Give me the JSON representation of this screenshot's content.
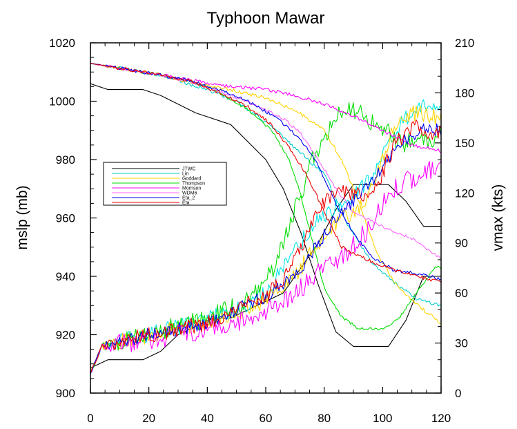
{
  "chart_data": {
    "type": "line",
    "title": "Typhoon Mawar",
    "xlabel": "",
    "ylabel_left": "mslp (mb)",
    "ylabel_right": "vmax (kts)",
    "xlim": [
      0,
      120
    ],
    "ylim_left": [
      900,
      1020
    ],
    "ylim_right": [
      0,
      210
    ],
    "x_ticks": [
      0,
      20,
      40,
      60,
      80,
      100,
      120
    ],
    "y_ticks_left": [
      900,
      920,
      940,
      960,
      980,
      1000,
      1020
    ],
    "y_ticks_right": [
      0,
      30,
      60,
      90,
      120,
      150,
      180,
      210
    ],
    "grid": false,
    "legend_position": "left",
    "legend": [
      "JTWC",
      "Lin",
      "Goddard",
      "Thompson",
      "Morrison",
      "WDM6",
      "Eta_2",
      "Eta"
    ],
    "series": [
      {
        "name": "JTWC",
        "color": "#000000",
        "quantity": "mslp",
        "axis": "left",
        "noise": 0,
        "points": [
          [
            0,
            1006
          ],
          [
            6,
            1004
          ],
          [
            18,
            1004
          ],
          [
            24,
            1002
          ],
          [
            36,
            996
          ],
          [
            48,
            992
          ],
          [
            60,
            980
          ],
          [
            66,
            970
          ],
          [
            72,
            955
          ],
          [
            78,
            937
          ],
          [
            84,
            921
          ],
          [
            90,
            916
          ],
          [
            102,
            916
          ],
          [
            108,
            925
          ],
          [
            114,
            940
          ],
          [
            120,
            940
          ]
        ]
      },
      {
        "name": "JTWC",
        "color": "#000000",
        "quantity": "vmax",
        "axis": "right",
        "noise": 0,
        "points": [
          [
            0,
            15
          ],
          [
            6,
            20
          ],
          [
            18,
            20
          ],
          [
            24,
            25
          ],
          [
            30,
            35
          ],
          [
            42,
            45
          ],
          [
            48,
            45
          ],
          [
            54,
            50
          ],
          [
            60,
            55
          ],
          [
            66,
            60
          ],
          [
            72,
            75
          ],
          [
            78,
            90
          ],
          [
            84,
            110
          ],
          [
            90,
            125
          ],
          [
            102,
            125
          ],
          [
            108,
            115
          ],
          [
            114,
            100
          ],
          [
            120,
            100
          ]
        ]
      },
      {
        "name": "Lin",
        "color": "#00cccc",
        "quantity": "mslp",
        "axis": "left",
        "noise": 0.6,
        "points": [
          [
            0,
            1013
          ],
          [
            12,
            1011
          ],
          [
            24,
            1009
          ],
          [
            30,
            1007
          ],
          [
            40,
            1004
          ],
          [
            50,
            1000
          ],
          [
            60,
            993
          ],
          [
            70,
            984
          ],
          [
            80,
            975
          ],
          [
            88,
            958
          ],
          [
            96,
            945
          ],
          [
            104,
            938
          ],
          [
            112,
            932
          ],
          [
            120,
            930
          ]
        ]
      },
      {
        "name": "Lin",
        "color": "#00e5e5",
        "quantity": "vmax",
        "axis": "right",
        "noise": 5,
        "points": [
          [
            0,
            12
          ],
          [
            4,
            28
          ],
          [
            20,
            35
          ],
          [
            40,
            45
          ],
          [
            50,
            50
          ],
          [
            60,
            60
          ],
          [
            70,
            85
          ],
          [
            76,
            100
          ],
          [
            82,
            110
          ],
          [
            90,
            118
          ],
          [
            96,
            130
          ],
          [
            102,
            150
          ],
          [
            108,
            165
          ],
          [
            114,
            172
          ],
          [
            120,
            168
          ]
        ]
      },
      {
        "name": "Goddard",
        "color": "#ffd400",
        "quantity": "mslp",
        "axis": "left",
        "noise": 0.6,
        "points": [
          [
            0,
            1013
          ],
          [
            12,
            1011
          ],
          [
            24,
            1009
          ],
          [
            36,
            1006
          ],
          [
            48,
            1004
          ],
          [
            60,
            1001
          ],
          [
            70,
            997
          ],
          [
            80,
            990
          ],
          [
            86,
            980
          ],
          [
            92,
            965
          ],
          [
            98,
            948
          ],
          [
            104,
            938
          ],
          [
            112,
            930
          ],
          [
            120,
            924
          ]
        ]
      },
      {
        "name": "Goddard",
        "color": "#ffd400",
        "quantity": "vmax",
        "axis": "right",
        "noise": 5,
        "points": [
          [
            0,
            12
          ],
          [
            4,
            28
          ],
          [
            20,
            35
          ],
          [
            40,
            42
          ],
          [
            50,
            48
          ],
          [
            60,
            55
          ],
          [
            70,
            70
          ],
          [
            78,
            90
          ],
          [
            86,
            105
          ],
          [
            92,
            110
          ],
          [
            98,
            130
          ],
          [
            104,
            160
          ],
          [
            110,
            168
          ],
          [
            120,
            165
          ]
        ]
      },
      {
        "name": "Thompson",
        "color": "#00dd00",
        "quantity": "mslp",
        "axis": "left",
        "noise": 0.5,
        "points": [
          [
            0,
            1013
          ],
          [
            12,
            1011
          ],
          [
            24,
            1009
          ],
          [
            34,
            1007
          ],
          [
            44,
            1003
          ],
          [
            54,
            997
          ],
          [
            62,
            990
          ],
          [
            68,
            980
          ],
          [
            72,
            968
          ],
          [
            76,
            952
          ],
          [
            80,
            936
          ],
          [
            86,
            926
          ],
          [
            92,
            922
          ],
          [
            100,
            922
          ],
          [
            106,
            926
          ],
          [
            112,
            935
          ],
          [
            118,
            943
          ],
          [
            120,
            943
          ]
        ]
      },
      {
        "name": "Thompson",
        "color": "#00dd00",
        "quantity": "vmax",
        "axis": "right",
        "noise": 6,
        "points": [
          [
            0,
            12
          ],
          [
            4,
            28
          ],
          [
            20,
            35
          ],
          [
            40,
            45
          ],
          [
            50,
            52
          ],
          [
            58,
            62
          ],
          [
            64,
            80
          ],
          [
            70,
            110
          ],
          [
            76,
            140
          ],
          [
            82,
            160
          ],
          [
            88,
            172
          ],
          [
            94,
            165
          ],
          [
            100,
            160
          ],
          [
            106,
            150
          ],
          [
            112,
            150
          ],
          [
            120,
            155
          ]
        ]
      },
      {
        "name": "Morrison",
        "color": "#ff00ff",
        "quantity": "mslp",
        "axis": "left",
        "noise": 0.6,
        "points": [
          [
            0,
            1013
          ],
          [
            12,
            1011
          ],
          [
            24,
            1009
          ],
          [
            36,
            1007
          ],
          [
            48,
            1005
          ],
          [
            60,
            1004
          ],
          [
            70,
            1002
          ],
          [
            80,
            999
          ],
          [
            90,
            995
          ],
          [
            100,
            990
          ],
          [
            110,
            985
          ],
          [
            120,
            983
          ]
        ]
      },
      {
        "name": "Morrison",
        "color": "#ff00ff",
        "quantity": "vmax",
        "axis": "right",
        "noise": 6,
        "points": [
          [
            0,
            12
          ],
          [
            4,
            28
          ],
          [
            20,
            32
          ],
          [
            40,
            38
          ],
          [
            50,
            42
          ],
          [
            60,
            48
          ],
          [
            70,
            60
          ],
          [
            80,
            75
          ],
          [
            88,
            85
          ],
          [
            96,
            100
          ],
          [
            102,
            120
          ],
          [
            108,
            128
          ],
          [
            114,
            130
          ],
          [
            120,
            140
          ]
        ]
      },
      {
        "name": "WDM6",
        "color": "#ff66ff",
        "quantity": "mslp",
        "axis": "left",
        "noise": 0.5,
        "points": [
          [
            0,
            1013
          ],
          [
            12,
            1011
          ],
          [
            24,
            1009
          ],
          [
            36,
            1006
          ],
          [
            48,
            1002
          ],
          [
            58,
            998
          ],
          [
            66,
            994
          ],
          [
            72,
            989
          ],
          [
            78,
            980
          ],
          [
            84,
            970
          ],
          [
            90,
            962
          ],
          [
            100,
            957
          ],
          [
            110,
            953
          ],
          [
            120,
            946
          ]
        ]
      },
      {
        "name": "WDM6",
        "color": "#ff66ff",
        "quantity": "vmax",
        "axis": "right",
        "noise": 0,
        "points": []
      },
      {
        "name": "Eta_2",
        "color": "#0000ee",
        "quantity": "mslp",
        "axis": "left",
        "noise": 0.6,
        "points": [
          [
            0,
            1013
          ],
          [
            12,
            1011
          ],
          [
            24,
            1009
          ],
          [
            34,
            1007
          ],
          [
            44,
            1004
          ],
          [
            54,
            1000
          ],
          [
            64,
            994
          ],
          [
            72,
            987
          ],
          [
            78,
            978
          ],
          [
            84,
            965
          ],
          [
            90,
            955
          ],
          [
            96,
            947
          ],
          [
            104,
            942
          ],
          [
            112,
            941
          ],
          [
            120,
            939
          ]
        ]
      },
      {
        "name": "Eta_2",
        "color": "#0000ee",
        "quantity": "vmax",
        "axis": "right",
        "noise": 4,
        "points": [
          [
            0,
            12
          ],
          [
            4,
            28
          ],
          [
            20,
            35
          ],
          [
            40,
            42
          ],
          [
            50,
            50
          ],
          [
            60,
            58
          ],
          [
            70,
            70
          ],
          [
            78,
            90
          ],
          [
            84,
            105
          ],
          [
            90,
            115
          ],
          [
            96,
            125
          ],
          [
            102,
            140
          ],
          [
            108,
            152
          ],
          [
            114,
            158
          ],
          [
            120,
            158
          ]
        ]
      },
      {
        "name": "Eta",
        "color": "#ee0000",
        "quantity": "mslp",
        "axis": "left",
        "noise": 0.6,
        "points": [
          [
            0,
            1013
          ],
          [
            12,
            1011
          ],
          [
            24,
            1009
          ],
          [
            34,
            1007
          ],
          [
            44,
            1003
          ],
          [
            54,
            998
          ],
          [
            62,
            992
          ],
          [
            68,
            984
          ],
          [
            74,
            975
          ],
          [
            80,
            962
          ],
          [
            86,
            950
          ],
          [
            94,
            946
          ],
          [
            104,
            942
          ],
          [
            112,
            940
          ],
          [
            120,
            938
          ]
        ]
      },
      {
        "name": "Eta",
        "color": "#ee0000",
        "quantity": "vmax",
        "axis": "right",
        "noise": 5,
        "points": [
          [
            0,
            12
          ],
          [
            4,
            28
          ],
          [
            20,
            35
          ],
          [
            40,
            42
          ],
          [
            50,
            50
          ],
          [
            60,
            58
          ],
          [
            68,
            72
          ],
          [
            74,
            95
          ],
          [
            80,
            115
          ],
          [
            86,
            122
          ],
          [
            92,
            118
          ],
          [
            98,
            125
          ],
          [
            104,
            148
          ],
          [
            110,
            160
          ],
          [
            120,
            155
          ]
        ]
      }
    ]
  }
}
